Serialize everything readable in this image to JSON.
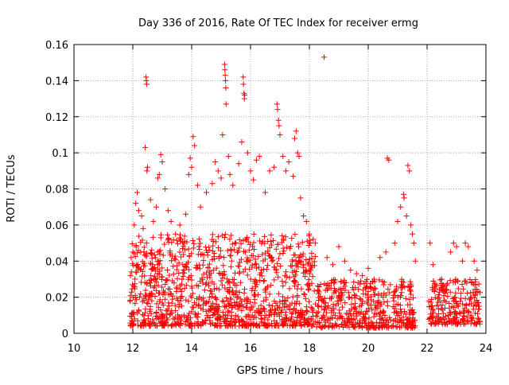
{
  "chart_data": {
    "type": "scatter",
    "title": "Day 336 of 2016, Rate Of TEC Index for receiver ermg",
    "xlabel": "GPS time / hours",
    "ylabel": "ROTI / TECUs",
    "xlim": [
      10,
      24
    ],
    "ylim": [
      0,
      0.16
    ],
    "xticks": [
      10,
      12,
      14,
      16,
      18,
      20,
      22,
      24
    ],
    "yticks": [
      0,
      0.02,
      0.04,
      0.06,
      0.08,
      0.1,
      0.12,
      0.14,
      0.16
    ],
    "xtick_labels": [
      "10",
      "12",
      "14",
      "16",
      "18",
      "20",
      "22",
      "24"
    ],
    "ytick_labels": [
      "0",
      "0.02",
      "0.04",
      "0.06",
      "0.08",
      "0.1",
      "0.12",
      "0.14",
      "0.16"
    ],
    "grid": true,
    "marker": "+",
    "color": "#ff0000",
    "series": [
      {
        "name": "ROTI",
        "points": [
          [
            11.92,
            0.032
          ],
          [
            12.0,
            0.045
          ],
          [
            12.05,
            0.06
          ],
          [
            12.1,
            0.072
          ],
          [
            12.15,
            0.078
          ],
          [
            12.2,
            0.068
          ],
          [
            12.3,
            0.065
          ],
          [
            12.35,
            0.058
          ],
          [
            12.42,
            0.103
          ],
          [
            12.45,
            0.142
          ],
          [
            12.46,
            0.14
          ],
          [
            12.47,
            0.138
          ],
          [
            12.48,
            0.09
          ],
          [
            12.5,
            0.092
          ],
          [
            12.6,
            0.074
          ],
          [
            12.7,
            0.062
          ],
          [
            12.8,
            0.07
          ],
          [
            12.85,
            0.086
          ],
          [
            12.9,
            0.088
          ],
          [
            12.95,
            0.099
          ],
          [
            13.0,
            0.095
          ],
          [
            13.1,
            0.08
          ],
          [
            13.2,
            0.068
          ],
          [
            13.3,
            0.062
          ],
          [
            13.45,
            0.055
          ],
          [
            13.6,
            0.06
          ],
          [
            13.8,
            0.066
          ],
          [
            13.9,
            0.088
          ],
          [
            13.95,
            0.097
          ],
          [
            14.0,
            0.092
          ],
          [
            14.05,
            0.109
          ],
          [
            14.1,
            0.104
          ],
          [
            14.2,
            0.082
          ],
          [
            14.3,
            0.07
          ],
          [
            14.5,
            0.078
          ],
          [
            14.7,
            0.083
          ],
          [
            14.8,
            0.095
          ],
          [
            14.9,
            0.09
          ],
          [
            15.0,
            0.086
          ],
          [
            15.05,
            0.11
          ],
          [
            15.12,
            0.149
          ],
          [
            15.13,
            0.146
          ],
          [
            15.14,
            0.143
          ],
          [
            15.15,
            0.14
          ],
          [
            15.16,
            0.136
          ],
          [
            15.17,
            0.127
          ],
          [
            15.25,
            0.098
          ],
          [
            15.3,
            0.088
          ],
          [
            15.4,
            0.082
          ],
          [
            15.6,
            0.094
          ],
          [
            15.7,
            0.106
          ],
          [
            15.75,
            0.142
          ],
          [
            15.76,
            0.138
          ],
          [
            15.78,
            0.133
          ],
          [
            15.79,
            0.13
          ],
          [
            15.8,
            0.132
          ],
          [
            15.9,
            0.1
          ],
          [
            16.0,
            0.09
          ],
          [
            16.1,
            0.085
          ],
          [
            16.2,
            0.096
          ],
          [
            16.3,
            0.098
          ],
          [
            16.5,
            0.078
          ],
          [
            16.65,
            0.09
          ],
          [
            16.8,
            0.092
          ],
          [
            16.9,
            0.127
          ],
          [
            16.92,
            0.124
          ],
          [
            16.95,
            0.118
          ],
          [
            16.97,
            0.115
          ],
          [
            17.0,
            0.11
          ],
          [
            17.1,
            0.098
          ],
          [
            17.2,
            0.09
          ],
          [
            17.3,
            0.095
          ],
          [
            17.45,
            0.087
          ],
          [
            17.5,
            0.108
          ],
          [
            17.55,
            0.112
          ],
          [
            17.6,
            0.1
          ],
          [
            17.65,
            0.098
          ],
          [
            17.7,
            0.075
          ],
          [
            17.8,
            0.065
          ],
          [
            17.9,
            0.062
          ],
          [
            18.0,
            0.055
          ],
          [
            18.2,
            0.05
          ],
          [
            18.5,
            0.153
          ],
          [
            18.6,
            0.042
          ],
          [
            18.8,
            0.038
          ],
          [
            19.0,
            0.048
          ],
          [
            19.2,
            0.04
          ],
          [
            19.4,
            0.035
          ],
          [
            19.6,
            0.033
          ],
          [
            19.8,
            0.032
          ],
          [
            20.0,
            0.036
          ],
          [
            20.2,
            0.03
          ],
          [
            20.4,
            0.042
          ],
          [
            20.6,
            0.045
          ],
          [
            20.65,
            0.097
          ],
          [
            20.7,
            0.096
          ],
          [
            20.9,
            0.05
          ],
          [
            21.0,
            0.062
          ],
          [
            21.1,
            0.07
          ],
          [
            21.2,
            0.077
          ],
          [
            21.22,
            0.075
          ],
          [
            21.3,
            0.065
          ],
          [
            21.35,
            0.093
          ],
          [
            21.4,
            0.09
          ],
          [
            21.45,
            0.06
          ],
          [
            21.5,
            0.055
          ],
          [
            21.55,
            0.05
          ],
          [
            21.6,
            0.04
          ],
          [
            22.1,
            0.05
          ],
          [
            22.2,
            0.038
          ],
          [
            22.5,
            0.03
          ],
          [
            22.8,
            0.045
          ],
          [
            22.9,
            0.05
          ],
          [
            23.0,
            0.048
          ],
          [
            23.2,
            0.04
          ],
          [
            23.3,
            0.05
          ],
          [
            23.4,
            0.048
          ],
          [
            23.6,
            0.04
          ],
          [
            23.7,
            0.035
          ]
        ]
      }
    ],
    "dense_regions": [
      {
        "x_range": [
          11.9,
          18.2
        ],
        "y_range": [
          0.004,
          0.055
        ],
        "count": 1150
      },
      {
        "x_range": [
          18.2,
          21.6
        ],
        "y_range": [
          0.003,
          0.03
        ],
        "count": 450
      },
      {
        "x_range": [
          22.05,
          23.8
        ],
        "y_range": [
          0.005,
          0.03
        ],
        "count": 250
      }
    ]
  }
}
